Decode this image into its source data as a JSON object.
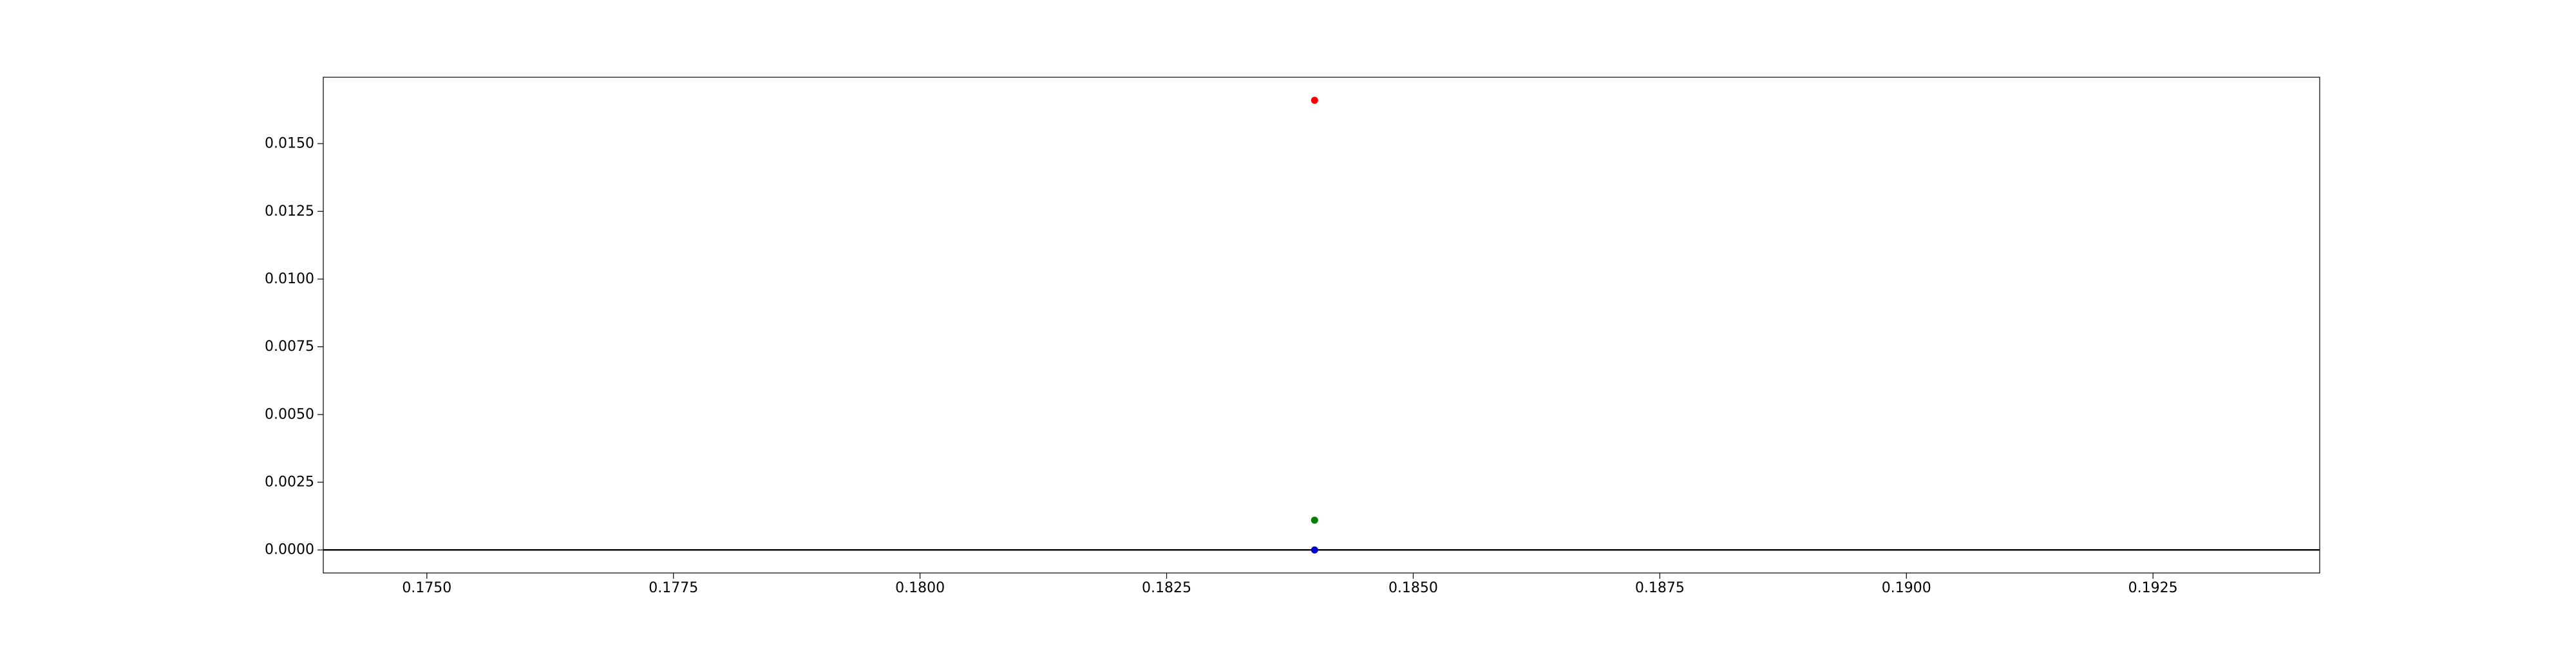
{
  "chart_data": {
    "type": "scatter",
    "title": "",
    "xlabel": "",
    "ylabel": "",
    "xlim": [
      0.17395,
      0.19419
    ],
    "ylim": [
      -0.00085,
      0.01745
    ],
    "x_ticks": [
      0.175,
      0.1775,
      0.18,
      0.1825,
      0.185,
      0.1875,
      0.19,
      0.1925
    ],
    "x_tick_labels": [
      "0.1750",
      "0.1775",
      "0.1800",
      "0.1825",
      "0.1850",
      "0.1875",
      "0.1900",
      "0.1925"
    ],
    "y_ticks": [
      0.0,
      0.0025,
      0.005,
      0.0075,
      0.01,
      0.0125,
      0.015
    ],
    "y_tick_labels": [
      "0.0000",
      "0.0025",
      "0.0050",
      "0.0075",
      "0.0100",
      "0.0125",
      "0.0150"
    ],
    "grid": false,
    "horizontal_line": {
      "y": 0.0,
      "color": "#000000"
    },
    "points": [
      {
        "x": 0.184,
        "y": 0.0166,
        "color": "#ff0000"
      },
      {
        "x": 0.184,
        "y": 0.0011,
        "color": "#008000"
      },
      {
        "x": 0.184,
        "y": 0.0,
        "color": "#0000cd"
      }
    ]
  }
}
